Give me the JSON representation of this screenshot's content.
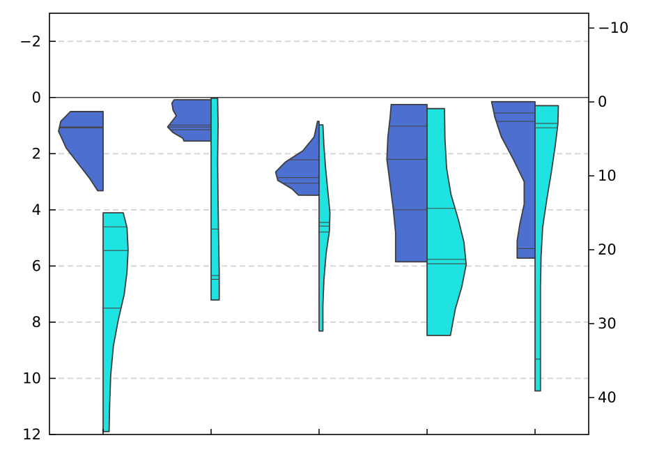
{
  "chart_data": {
    "type": "violin",
    "split": true,
    "orientation": "vertical",
    "categories": [
      "",
      "",
      "",
      "",
      ""
    ],
    "y_axis": {
      "range": [
        12,
        -3
      ],
      "inverted": true,
      "ticks": [
        -2,
        0,
        2,
        4,
        6,
        8,
        10,
        12
      ],
      "tick_labels": [
        "−2",
        "0",
        "2",
        "4",
        "6",
        "8",
        "10",
        "12"
      ],
      "grid": "dashed",
      "grid_values": [
        -2,
        2,
        4,
        6,
        8,
        10
      ]
    },
    "y2_axis": {
      "range": [
        45,
        -12
      ],
      "inverted": true,
      "ticks": [
        -10,
        0,
        10,
        20,
        30,
        40
      ],
      "tick_labels": [
        "−10",
        "0",
        "10",
        "20",
        "30",
        "40"
      ]
    },
    "reference_line": 0,
    "series": [
      {
        "color": "#4d6fd0",
        "side": "left",
        "axis": "left",
        "violins": [
          {
            "min": 0.5,
            "max": 3.32,
            "q25": 1.05,
            "median": 1.07,
            "q75": 1.08,
            "profile": [
              [
                0.5,
                0.6
              ],
              [
                0.85,
                0.78
              ],
              [
                1.2,
                0.82
              ],
              [
                1.8,
                0.68
              ],
              [
                2.4,
                0.44
              ],
              [
                2.9,
                0.24
              ],
              [
                3.32,
                0.1
              ]
            ]
          },
          {
            "min": 0.08,
            "max": 1.55,
            "q25": 0.98,
            "median": 1.05,
            "q75": 1.15,
            "profile": [
              [
                0.08,
                0.68
              ],
              [
                0.2,
                0.72
              ],
              [
                0.45,
                0.7
              ],
              [
                0.65,
                0.64
              ],
              [
                0.85,
                0.72
              ],
              [
                1.05,
                0.8
              ],
              [
                1.25,
                0.7
              ],
              [
                1.45,
                0.52
              ],
              [
                1.55,
                0.5
              ]
            ]
          },
          {
            "min": 0.85,
            "max": 3.48,
            "q25": 2.22,
            "median": 2.85,
            "q75": 3.05,
            "profile": [
              [
                0.85,
                0.03
              ],
              [
                1.4,
                0.09
              ],
              [
                1.9,
                0.3
              ],
              [
                2.3,
                0.62
              ],
              [
                2.65,
                0.8
              ],
              [
                2.95,
                0.76
              ],
              [
                3.25,
                0.5
              ],
              [
                3.48,
                0.38
              ]
            ]
          },
          {
            "min": 0.25,
            "max": 5.85,
            "q25": 1.02,
            "median": 2.2,
            "q75": 4.0,
            "profile": [
              [
                0.25,
                0.66
              ],
              [
                0.7,
                0.68
              ],
              [
                1.4,
                0.72
              ],
              [
                2.2,
                0.74
              ],
              [
                3.1,
                0.68
              ],
              [
                4.0,
                0.62
              ],
              [
                4.8,
                0.58
              ],
              [
                5.5,
                0.58
              ],
              [
                5.85,
                0.58
              ]
            ]
          },
          {
            "min": 0.15,
            "max": 5.72,
            "q25": 0.55,
            "median": 0.85,
            "q75": 5.38,
            "profile": [
              [
                0.15,
                0.8
              ],
              [
                0.7,
                0.74
              ],
              [
                1.4,
                0.62
              ],
              [
                2.2,
                0.4
              ],
              [
                3.0,
                0.2
              ],
              [
                3.8,
                0.2
              ],
              [
                4.5,
                0.28
              ],
              [
                5.1,
                0.33
              ],
              [
                5.72,
                0.33
              ]
            ]
          }
        ]
      },
      {
        "color": "#1fe3e0",
        "side": "right",
        "axis": "right",
        "violins": [
          {
            "min": 15.0,
            "max": 44.6,
            "q25": 16.9,
            "median": 20.1,
            "q75": 27.9,
            "profile": [
              [
                15.0,
                0.37
              ],
              [
                17.0,
                0.44
              ],
              [
                20.0,
                0.46
              ],
              [
                23.0,
                0.44
              ],
              [
                26.0,
                0.39
              ],
              [
                29.5,
                0.28
              ],
              [
                33.0,
                0.19
              ],
              [
                37.0,
                0.14
              ],
              [
                41.0,
                0.12
              ],
              [
                44.6,
                0.11
              ]
            ]
          },
          {
            "min": -0.5,
            "max": 26.8,
            "q25": 17.2,
            "median": 23.5,
            "q75": 24.0,
            "profile": [
              [
                -0.5,
                0.12
              ],
              [
                3.0,
                0.13
              ],
              [
                8.0,
                0.12
              ],
              [
                14.0,
                0.13
              ],
              [
                19.0,
                0.14
              ],
              [
                23.0,
                0.15
              ],
              [
                26.8,
                0.15
              ]
            ]
          },
          {
            "min": 3.1,
            "max": 31.0,
            "q25": 16.3,
            "median": 16.8,
            "q75": 17.6,
            "profile": [
              [
                3.1,
                0.07
              ],
              [
                6.0,
                0.09
              ],
              [
                9.0,
                0.12
              ],
              [
                12.0,
                0.16
              ],
              [
                15.0,
                0.2
              ],
              [
                17.5,
                0.19
              ],
              [
                20.5,
                0.13
              ],
              [
                24.0,
                0.09
              ],
              [
                27.5,
                0.07
              ],
              [
                31.0,
                0.07
              ]
            ]
          },
          {
            "min": 0.9,
            "max": 31.6,
            "q25": 14.4,
            "median": 21.3,
            "q75": 21.9,
            "profile": [
              [
                0.9,
                0.32
              ],
              [
                5.0,
                0.33
              ],
              [
                9.0,
                0.36
              ],
              [
                12.5,
                0.44
              ],
              [
                16.0,
                0.58
              ],
              [
                19.0,
                0.68
              ],
              [
                22.0,
                0.72
              ],
              [
                25.0,
                0.64
              ],
              [
                28.0,
                0.52
              ],
              [
                31.6,
                0.43
              ]
            ]
          },
          {
            "min": 0.5,
            "max": 39.1,
            "q25": 2.9,
            "median": 3.5,
            "q75": 34.8,
            "profile": [
              [
                0.5,
                0.43
              ],
              [
                3.0,
                0.42
              ],
              [
                6.0,
                0.37
              ],
              [
                9.5,
                0.3
              ],
              [
                13.0,
                0.22
              ],
              [
                17.0,
                0.14
              ],
              [
                21.0,
                0.11
              ],
              [
                25.0,
                0.1
              ],
              [
                30.0,
                0.1
              ],
              [
                35.0,
                0.1
              ],
              [
                39.1,
                0.1
              ]
            ]
          }
        ]
      }
    ],
    "legend": "none"
  }
}
